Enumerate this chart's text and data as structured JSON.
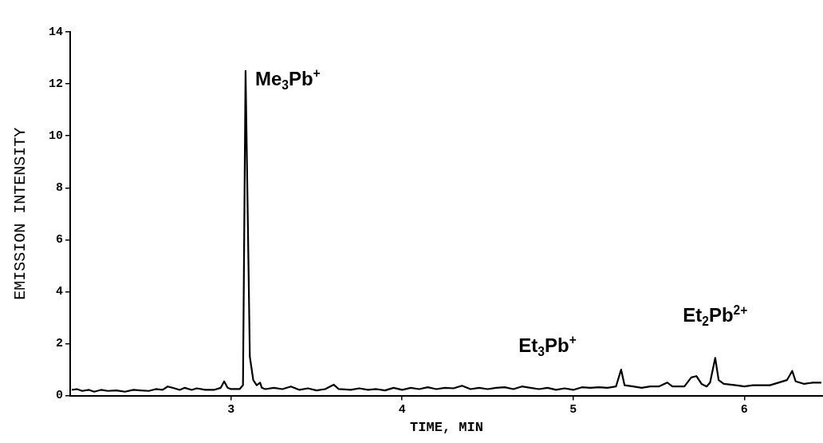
{
  "chart_data": {
    "type": "line",
    "xlabel": "TIME, MIN",
    "ylabel": "EMISSION INTENSITY",
    "xlim": [
      2.06,
      6.46
    ],
    "xticks": [
      3,
      4,
      5,
      6
    ],
    "ylim": [
      0,
      14
    ],
    "yticks": [
      0,
      2,
      4,
      6,
      8,
      10,
      12,
      14
    ],
    "grid": false,
    "legend": false,
    "marker": "none",
    "line_style": "solid",
    "series": [
      {
        "color": "#000000",
        "x": [
          2.07,
          2.1,
          2.13,
          2.17,
          2.2,
          2.24,
          2.28,
          2.33,
          2.38,
          2.43,
          2.47,
          2.52,
          2.56,
          2.6,
          2.63,
          2.67,
          2.7,
          2.73,
          2.77,
          2.8,
          2.85,
          2.9,
          2.94,
          2.96,
          2.98,
          3.0,
          3.05,
          3.07,
          3.085,
          3.1,
          3.11,
          3.13,
          3.15,
          3.17,
          3.18,
          3.2,
          3.25,
          3.3,
          3.35,
          3.4,
          3.45,
          3.5,
          3.55,
          3.6,
          3.63,
          3.7,
          3.75,
          3.8,
          3.85,
          3.9,
          3.95,
          4.0,
          4.05,
          4.1,
          4.15,
          4.2,
          4.25,
          4.3,
          4.35,
          4.4,
          4.45,
          4.5,
          4.55,
          4.6,
          4.65,
          4.7,
          4.75,
          4.8,
          4.85,
          4.9,
          4.95,
          5.0,
          5.05,
          5.1,
          5.15,
          5.2,
          5.25,
          5.28,
          5.3,
          5.35,
          5.4,
          5.45,
          5.5,
          5.55,
          5.58,
          5.65,
          5.69,
          5.72,
          5.75,
          5.78,
          5.8,
          5.83,
          5.85,
          5.88,
          5.95,
          6.0,
          6.05,
          6.1,
          6.15,
          6.2,
          6.25,
          6.28,
          6.3,
          6.35,
          6.4,
          6.45
        ],
        "values": [
          0.22,
          0.25,
          0.18,
          0.22,
          0.15,
          0.22,
          0.18,
          0.2,
          0.15,
          0.22,
          0.2,
          0.18,
          0.25,
          0.22,
          0.35,
          0.28,
          0.22,
          0.3,
          0.22,
          0.28,
          0.22,
          0.22,
          0.3,
          0.55,
          0.3,
          0.25,
          0.25,
          0.4,
          12.5,
          6,
          1.5,
          0.6,
          0.4,
          0.5,
          0.3,
          0.25,
          0.3,
          0.25,
          0.35,
          0.22,
          0.28,
          0.2,
          0.25,
          0.42,
          0.25,
          0.22,
          0.28,
          0.22,
          0.25,
          0.2,
          0.3,
          0.22,
          0.3,
          0.25,
          0.32,
          0.25,
          0.3,
          0.28,
          0.38,
          0.25,
          0.3,
          0.25,
          0.3,
          0.32,
          0.25,
          0.35,
          0.3,
          0.25,
          0.3,
          0.22,
          0.28,
          0.22,
          0.32,
          0.3,
          0.32,
          0.3,
          0.35,
          1.0,
          0.4,
          0.35,
          0.3,
          0.35,
          0.35,
          0.5,
          0.35,
          0.35,
          0.7,
          0.75,
          0.45,
          0.35,
          0.5,
          1.45,
          0.6,
          0.45,
          0.4,
          0.35,
          0.4,
          0.4,
          0.4,
          0.5,
          0.6,
          0.95,
          0.55,
          0.45,
          0.5,
          0.5
        ]
      }
    ],
    "annotations": [
      {
        "text": "Me$_{3}$Pb$^{+}$",
        "x": 3.085,
        "y": 12.5
      },
      {
        "text": "Et$_{3}$Pb$^{+}$",
        "x": 4.85,
        "y": 0.3
      },
      {
        "text": "Et$_{2}$Pb$^{2+}$",
        "x": 5.83,
        "y": 1.45
      }
    ]
  }
}
